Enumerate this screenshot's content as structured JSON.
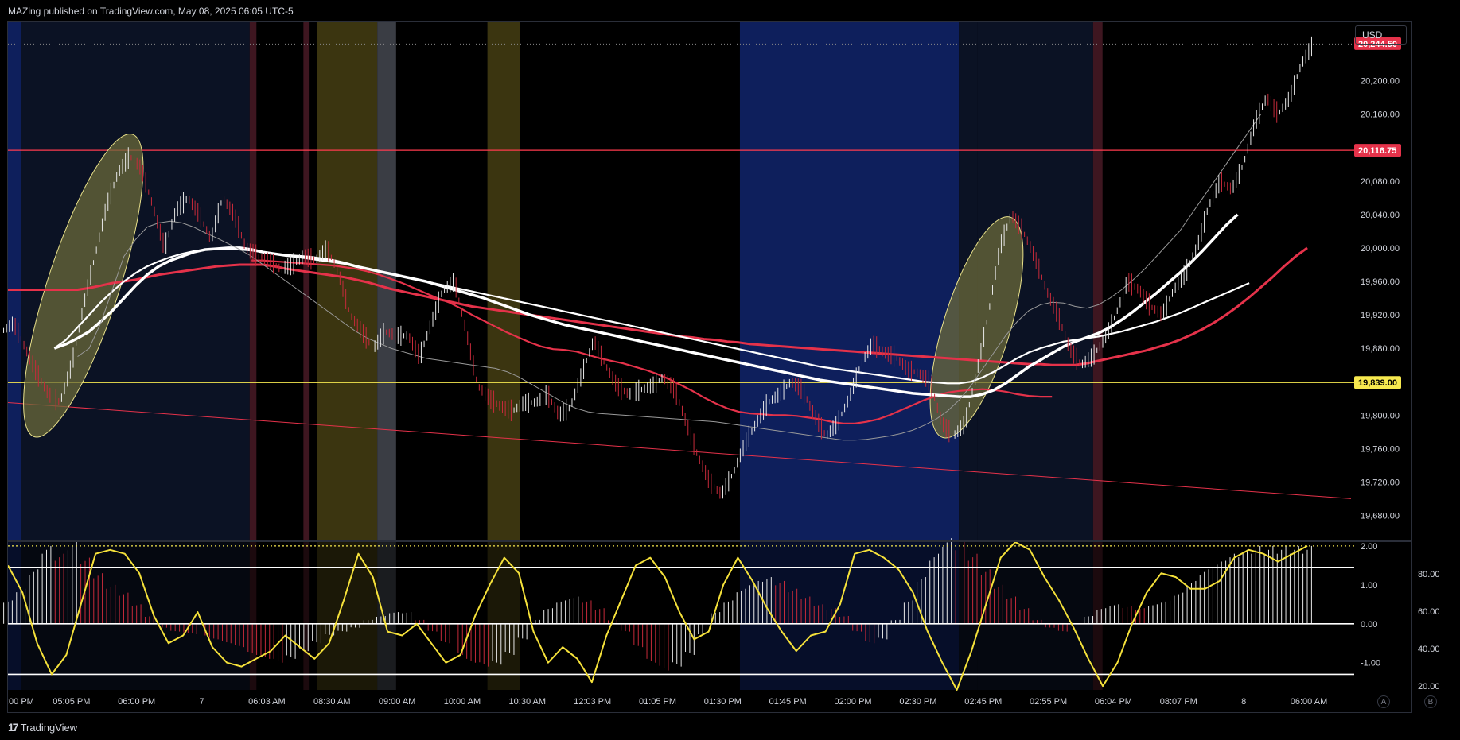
{
  "header": {
    "published": "MAZing published on TradingView.com, May 08, 2025 06:05 UTC-5"
  },
  "footer": {
    "brand": "TradingView",
    "logo_mark": "17"
  },
  "currency": "USD",
  "axis_buttons": [
    "A",
    "B"
  ],
  "colors": {
    "background": "#000000",
    "bull_candle": "#e8e8e8",
    "bear_candle": "#c62a3a",
    "ema_red": "#e5324a",
    "ma_white": "#ffffff",
    "ma_gray": "#9a9a9a",
    "level_red": "#ff3b4e",
    "level_yellow": "#f7e94f",
    "oscillator": "#f5e13a",
    "session_blue": "#0e1f5c",
    "session_olive": "#3b3510",
    "session_gray": "#3a3d44",
    "session_maroon": "#3e1620",
    "session_navy": "#0b1224",
    "ellipse_fill": "#6b6a3a"
  },
  "chart_data": [
    {
      "type": "line",
      "title": "",
      "x_ticks": [
        ":00 PM",
        "05:05 PM",
        "06:00 PM",
        "7",
        "06:03 AM",
        "08:30 AM",
        "09:00 AM",
        "10:00 AM",
        "10:30 AM",
        "12:03 PM",
        "01:05 PM",
        "01:30 PM",
        "01:45 PM",
        "02:00 PM",
        "02:30 PM",
        "02:45 PM",
        "02:55 PM",
        "06:04 PM",
        "08:07 PM",
        "8",
        "06:00 AM"
      ],
      "y_ticks": [
        "20,200.00",
        "20,160.00",
        "20,120.00",
        "20,080.00",
        "20,040.00",
        "20,000.00",
        "19,960.00",
        "19,920.00",
        "19,880.00",
        "19,840.00",
        "19,800.00",
        "19,760.00",
        "19,720.00",
        "19,680.00"
      ],
      "ylim": [
        19650,
        20270
      ],
      "price_labels": [
        {
          "text": "20,244.50",
          "value": 20244.5,
          "color": "#e5324a"
        },
        {
          "text": "20,116.75",
          "value": 20116.75,
          "color": "#e5324a"
        },
        {
          "text": "19,839.00",
          "value": 19839,
          "color": "#f7e94f"
        }
      ],
      "horizontal_levels": [
        {
          "value": 20116.75,
          "color": "#ff3b4e"
        },
        {
          "value": 19839,
          "color": "#f7e94f"
        }
      ],
      "trendline": {
        "from": [
          0,
          19815
        ],
        "to": [
          1,
          19700
        ],
        "color": "#e5324a"
      },
      "close": [
        19910,
        19880,
        19850,
        19825,
        19815,
        19860,
        19930,
        19990,
        20050,
        20090,
        20110,
        20095,
        20050,
        20000,
        20045,
        20060,
        20040,
        20010,
        20060,
        20040,
        20000,
        19990,
        19985,
        19975,
        19980,
        19990,
        19985,
        20000,
        19970,
        19920,
        19900,
        19880,
        19900,
        19895,
        19895,
        19870,
        19910,
        19950,
        19960,
        19900,
        19835,
        19820,
        19810,
        19805,
        19815,
        19815,
        19825,
        19800,
        19810,
        19850,
        19890,
        19860,
        19835,
        19825,
        19830,
        19835,
        19845,
        19830,
        19790,
        19750,
        19720,
        19705,
        19730,
        19765,
        19790,
        19815,
        19825,
        19840,
        19830,
        19800,
        19775,
        19790,
        19820,
        19860,
        19885,
        19875,
        19870,
        19855,
        19850,
        19840,
        19790,
        19775,
        19790,
        19850,
        19920,
        20000,
        20040,
        20020,
        19990,
        19950,
        19920,
        19880,
        19860,
        19870,
        19890,
        19920,
        19960,
        19950,
        19930,
        19920,
        19950,
        19970,
        20000,
        20050,
        20080,
        20070,
        20100,
        20150,
        20180,
        20160,
        20180,
        20220,
        20244
      ],
      "series": [
        {
          "name": "",
          "color": "#e5324a",
          "values": [
            19950,
            19950,
            19950,
            19950,
            19950,
            19950,
            19950,
            19952,
            19955,
            19958,
            19960,
            19962,
            19965,
            19968,
            19970,
            19972,
            19974,
            19976,
            19978,
            19979,
            19980,
            19980,
            19980,
            19978,
            19975,
            19973,
            19971,
            19969,
            19967,
            19965,
            19962,
            19959,
            19955,
            19951,
            19948,
            19945,
            19942,
            19939,
            19936,
            19933,
            19930,
            19928,
            19926,
            19924,
            19922,
            19920,
            19918,
            19916,
            19914,
            19912,
            19910,
            19908,
            19906,
            19904,
            19902,
            19900,
            19898,
            19896,
            19894,
            19893,
            19891,
            19890,
            19888,
            19887,
            19885,
            19884,
            19883,
            19882,
            19881,
            19880,
            19879,
            19878,
            19877,
            19876,
            19875,
            19874,
            19873,
            19872,
            19871,
            19870,
            19869,
            19868,
            19867,
            19866,
            19865,
            19864,
            19863,
            19862,
            19861,
            19861,
            19860,
            19860,
            19860,
            19862,
            19865,
            19868,
            19871,
            19874,
            19877,
            19881,
            19885,
            19890,
            19896,
            19903,
            19911,
            19920,
            19930,
            19941,
            19953,
            19965,
            19978,
            19990,
            20000
          ]
        },
        {
          "name": "",
          "color": "#e5324a",
          "values": [
            null,
            null,
            null,
            null,
            null,
            null,
            null,
            null,
            null,
            null,
            null,
            null,
            null,
            null,
            null,
            null,
            null,
            null,
            null,
            null,
            null,
            19985,
            19985,
            19984,
            19983,
            19982,
            19981,
            19980,
            19979,
            19977,
            19975,
            19972,
            19968,
            19963,
            19958,
            19952,
            19946,
            19940,
            19935,
            19928,
            19920,
            19913,
            19906,
            19899,
            19893,
            19887,
            19882,
            19879,
            19878,
            19876,
            19872,
            19868,
            19865,
            19862,
            19858,
            19854,
            19849,
            19843,
            19836,
            19829,
            19821,
            19814,
            19808,
            19804,
            19802,
            19801,
            19800,
            19800,
            19799,
            19797,
            19795,
            19792,
            19790,
            19790,
            19792,
            19795,
            19800,
            19806,
            19812,
            19818,
            19823,
            19827,
            19829,
            19830,
            19831,
            19830,
            19828,
            19825,
            19823,
            19822,
            19822,
            null,
            null,
            null,
            null,
            null,
            null,
            null,
            null,
            null,
            null,
            null,
            null,
            null,
            null,
            null,
            null,
            null,
            null,
            null,
            null,
            null,
            null
          ]
        },
        {
          "name": "",
          "color": "#ffffff",
          "values": [
            null,
            null,
            null,
            null,
            19880,
            19885,
            19892,
            19900,
            19912,
            19925,
            19940,
            19955,
            19968,
            19978,
            19985,
            19990,
            19995,
            19998,
            19999,
            20000,
            20000,
            19998,
            19995,
            19993,
            19991,
            19990,
            19989,
            19987,
            19985,
            19982,
            19978,
            19975,
            19972,
            19969,
            19966,
            19963,
            19960,
            19956,
            19952,
            19948,
            19944,
            19940,
            19935,
            19930,
            19925,
            19920,
            19916,
            19912,
            19908,
            19905,
            19902,
            19899,
            19896,
            19893,
            19890,
            19887,
            19884,
            19881,
            19878,
            19875,
            19872,
            19869,
            19866,
            19863,
            19860,
            19857,
            19854,
            19851,
            19848,
            19845,
            19842,
            19840,
            19838,
            19836,
            19834,
            19832,
            19830,
            19828,
            19826,
            19825,
            19824,
            19823,
            19822,
            19822,
            19825,
            19830,
            19838,
            19848,
            19858,
            19866,
            19874,
            19882,
            19888,
            19893,
            19898,
            19905,
            19914,
            19924,
            19935,
            19946,
            19958,
            19970,
            19983,
            19997,
            20012,
            20027,
            20040,
            null,
            null,
            null,
            null,
            null,
            null
          ]
        },
        {
          "name": "",
          "color": "#ffffff",
          "values": [
            null,
            null,
            null,
            null,
            19880,
            19890,
            19905,
            19920,
            19935,
            19948,
            19960,
            19970,
            19978,
            19984,
            19989,
            19993,
            19996,
            19998,
            19999,
            19999,
            19998,
            19997,
            19995,
            19993,
            19991,
            19989,
            19987,
            19985,
            19983,
            19981,
            19978,
            19975,
            19972,
            19969,
            19966,
            19963,
            19960,
            19957,
            19954,
            19951,
            19948,
            19945,
            19942,
            19939,
            19936,
            19933,
            19930,
            19927,
            19924,
            19921,
            19918,
            19915,
            19912,
            19909,
            19906,
            19903,
            19900,
            19897,
            19894,
            19891,
            19888,
            19885,
            19882,
            19879,
            19876,
            19873,
            19870,
            19867,
            19864,
            19861,
            19858,
            19856,
            19854,
            19852,
            19850,
            19848,
            19846,
            19844,
            19842,
            19840,
            19839,
            19838,
            19838,
            19840,
            19845,
            19852,
            19860,
            19868,
            19875,
            19880,
            19884,
            19888,
            19890,
            19892,
            19894,
            19897,
            19900,
            19904,
            19908,
            19912,
            19917,
            19922,
            19928,
            19934,
            19940,
            19946,
            19952,
            19958,
            null,
            null,
            null,
            null,
            null
          ]
        },
        {
          "name": "",
          "color": "#9a9a9a",
          "values": [
            null,
            null,
            null,
            null,
            null,
            null,
            19870,
            19880,
            19910,
            19950,
            19990,
            20010,
            20025,
            20030,
            20032,
            20030,
            20025,
            20018,
            20012,
            20005,
            19998,
            19990,
            19980,
            19970,
            19960,
            19950,
            19940,
            19930,
            19920,
            19910,
            19900,
            19892,
            19886,
            19880,
            19876,
            19872,
            19868,
            19866,
            19864,
            19862,
            19860,
            19858,
            19856,
            19852,
            19846,
            19838,
            19830,
            19822,
            19814,
            19808,
            19804,
            19802,
            19801,
            19800,
            19799,
            19798,
            19797,
            19796,
            19795,
            19794,
            19793,
            19792,
            19790,
            19788,
            19786,
            19784,
            19782,
            19780,
            19778,
            19776,
            19774,
            19772,
            19770,
            19770,
            19771,
            19773,
            19775,
            19778,
            19782,
            19788,
            19795,
            19805,
            19818,
            19835,
            19855,
            19875,
            19895,
            19912,
            19925,
            19932,
            19935,
            19934,
            19930,
            19928,
            19932,
            19940,
            19950,
            19962,
            19975,
            19990,
            20005,
            20020,
            20040,
            20060,
            20080,
            20100,
            20120,
            20140,
            20160,
            null,
            null,
            null,
            null
          ]
        }
      ]
    },
    {
      "type": "bar",
      "title": "",
      "y_ticks_left": [
        "2.00",
        "1.00",
        "0.00",
        "-1.00"
      ],
      "y_ticks_right": [
        "80.00",
        "60.00",
        "40.00",
        "20.00"
      ],
      "ylim": [
        -1.7,
        2.1
      ],
      "levels": [
        2.0,
        1.45,
        0.0,
        -1.3
      ],
      "histogram": [
        0.6,
        0.9,
        1.4,
        2.0,
        1.8,
        2.1,
        1.7,
        1.3,
        1.0,
        0.8,
        0.5,
        0.2,
        -0.1,
        -0.2,
        -0.25,
        -0.3,
        -0.4,
        -0.5,
        -0.6,
        -0.8,
        -0.9,
        -1.0,
        -0.9,
        -0.7,
        -0.5,
        -0.3,
        -0.2,
        -0.1,
        0.1,
        0.2,
        0.3,
        0.3,
        0.1,
        -0.2,
        -0.5,
        -0.8,
        -1.0,
        -1.1,
        -1.05,
        -0.8,
        -0.4,
        0.1,
        0.4,
        0.6,
        0.7,
        0.6,
        0.4,
        0.1,
        -0.2,
        -0.6,
        -1.0,
        -1.2,
        -1.1,
        -0.8,
        -0.3,
        0.3,
        0.6,
        0.9,
        1.1,
        1.2,
        1.1,
        0.9,
        0.7,
        0.5,
        0.4,
        0.2,
        -0.2,
        -0.5,
        -0.4,
        0.1,
        0.6,
        1.2,
        1.8,
        2.2,
        2.1,
        1.8,
        1.4,
        1.0,
        0.7,
        0.4,
        0.1,
        -0.1,
        -0.2,
        0.0,
        0.2,
        0.4,
        0.5,
        0.45,
        0.4,
        0.5,
        0.6,
        0.8,
        1.1,
        1.4,
        1.6,
        1.8,
        1.9,
        2.0,
        2.0,
        2.0,
        2.0,
        2.0
      ],
      "line": [
        1.5,
        0.8,
        -0.5,
        -1.3,
        -0.8,
        0.5,
        1.8,
        1.9,
        1.8,
        1.3,
        0.2,
        -0.5,
        -0.3,
        0.3,
        -0.6,
        -1.0,
        -1.1,
        -0.9,
        -0.7,
        -0.3,
        -0.6,
        -0.9,
        -0.5,
        0.6,
        1.8,
        1.2,
        -0.2,
        -0.3,
        0.0,
        -0.5,
        -1.0,
        -0.8,
        0.2,
        1.0,
        1.7,
        1.3,
        -0.2,
        -1.0,
        -0.6,
        -0.9,
        -1.5,
        -0.3,
        0.6,
        1.5,
        1.7,
        1.2,
        0.3,
        -0.4,
        -0.2,
        1.0,
        1.7,
        1.1,
        0.4,
        -0.2,
        -0.7,
        -0.3,
        -0.2,
        0.5,
        1.8,
        1.9,
        1.7,
        1.4,
        0.8,
        -0.2,
        -1.0,
        -1.7,
        -0.7,
        0.5,
        1.7,
        2.1,
        1.9,
        1.2,
        0.6,
        -0.1,
        -0.9,
        -1.6,
        -1.0,
        0.0,
        0.8,
        1.3,
        1.2,
        0.9,
        0.9,
        1.1,
        1.7,
        1.9,
        1.8,
        1.6,
        1.8,
        2.0
      ]
    }
  ]
}
